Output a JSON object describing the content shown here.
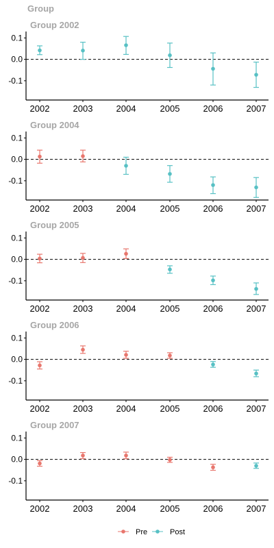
{
  "chart_data": {
    "type": "scatter",
    "super_title": "Group",
    "x": [
      "2002",
      "2003",
      "2004",
      "2005",
      "2006",
      "2007"
    ],
    "ylim": [
      -0.19,
      0.13
    ],
    "yticks": [
      0.1,
      0.0,
      -0.1
    ],
    "ytick_labels": [
      "0.1",
      "0.0",
      "-0.1"
    ],
    "reference_line": {
      "y": 0,
      "style": "dashed"
    },
    "grid": false,
    "legend": {
      "placement": "bottom",
      "entries": [
        {
          "label": "Pre",
          "color": "#e8766d"
        },
        {
          "label": "Post",
          "color": "#57c0c4"
        }
      ]
    },
    "colors": {
      "Pre": "#e8766d",
      "Post": "#57c0c4",
      "title": "#a6a6a6"
    },
    "panels": [
      {
        "title": "Group 2002",
        "points": [
          {
            "x": "2002",
            "y": 0.042,
            "lo": 0.022,
            "hi": 0.063,
            "period": "Post"
          },
          {
            "x": "2003",
            "y": 0.041,
            "lo": 0.0,
            "hi": 0.08,
            "period": "Post"
          },
          {
            "x": "2004",
            "y": 0.066,
            "lo": 0.023,
            "hi": 0.107,
            "period": "Post"
          },
          {
            "x": "2005",
            "y": 0.019,
            "lo": -0.038,
            "hi": 0.076,
            "period": "Post"
          },
          {
            "x": "2006",
            "y": -0.044,
            "lo": -0.12,
            "hi": 0.03,
            "period": "Post"
          },
          {
            "x": "2007",
            "y": -0.072,
            "lo": -0.131,
            "hi": -0.013,
            "period": "Post"
          }
        ]
      },
      {
        "title": "Group 2004",
        "points": [
          {
            "x": "2002",
            "y": 0.013,
            "lo": -0.018,
            "hi": 0.043,
            "period": "Pre"
          },
          {
            "x": "2003",
            "y": 0.015,
            "lo": -0.012,
            "hi": 0.043,
            "period": "Pre"
          },
          {
            "x": "2004",
            "y": -0.03,
            "lo": -0.07,
            "hi": 0.01,
            "period": "Post"
          },
          {
            "x": "2005",
            "y": -0.068,
            "lo": -0.107,
            "hi": -0.029,
            "period": "Post"
          },
          {
            "x": "2006",
            "y": -0.12,
            "lo": -0.16,
            "hi": -0.082,
            "period": "Post"
          },
          {
            "x": "2007",
            "y": -0.131,
            "lo": -0.178,
            "hi": -0.085,
            "period": "Post"
          }
        ]
      },
      {
        "title": "Group 2005",
        "points": [
          {
            "x": "2002",
            "y": 0.004,
            "lo": -0.016,
            "hi": 0.024,
            "period": "Pre"
          },
          {
            "x": "2003",
            "y": 0.007,
            "lo": -0.015,
            "hi": 0.028,
            "period": "Pre"
          },
          {
            "x": "2004",
            "y": 0.026,
            "lo": 0.004,
            "hi": 0.049,
            "period": "Pre"
          },
          {
            "x": "2005",
            "y": -0.047,
            "lo": -0.065,
            "hi": -0.03,
            "period": "Post"
          },
          {
            "x": "2006",
            "y": -0.098,
            "lo": -0.118,
            "hi": -0.078,
            "period": "Post"
          },
          {
            "x": "2007",
            "y": -0.138,
            "lo": -0.164,
            "hi": -0.11,
            "period": "Post"
          }
        ]
      },
      {
        "title": "Group 2006",
        "points": [
          {
            "x": "2002",
            "y": -0.028,
            "lo": -0.045,
            "hi": -0.011,
            "period": "Pre"
          },
          {
            "x": "2003",
            "y": 0.045,
            "lo": 0.028,
            "hi": 0.063,
            "period": "Pre"
          },
          {
            "x": "2004",
            "y": 0.021,
            "lo": 0.005,
            "hi": 0.038,
            "period": "Pre"
          },
          {
            "x": "2005",
            "y": 0.018,
            "lo": 0.005,
            "hi": 0.031,
            "period": "Pre"
          },
          {
            "x": "2006",
            "y": -0.024,
            "lo": -0.037,
            "hi": -0.01,
            "period": "Post"
          },
          {
            "x": "2007",
            "y": -0.066,
            "lo": -0.081,
            "hi": -0.05,
            "period": "Post"
          }
        ]
      },
      {
        "title": "Group 2007",
        "points": [
          {
            "x": "2002",
            "y": -0.019,
            "lo": -0.032,
            "hi": -0.006,
            "period": "Pre"
          },
          {
            "x": "2003",
            "y": 0.018,
            "lo": 0.003,
            "hi": 0.032,
            "period": "Pre"
          },
          {
            "x": "2004",
            "y": 0.018,
            "lo": 0.003,
            "hi": 0.034,
            "period": "Pre"
          },
          {
            "x": "2005",
            "y": -0.002,
            "lo": -0.014,
            "hi": 0.01,
            "period": "Pre"
          },
          {
            "x": "2006",
            "y": -0.037,
            "lo": -0.051,
            "hi": -0.023,
            "period": "Pre"
          },
          {
            "x": "2007",
            "y": -0.03,
            "lo": -0.042,
            "hi": -0.017,
            "period": "Post"
          }
        ]
      }
    ]
  }
}
